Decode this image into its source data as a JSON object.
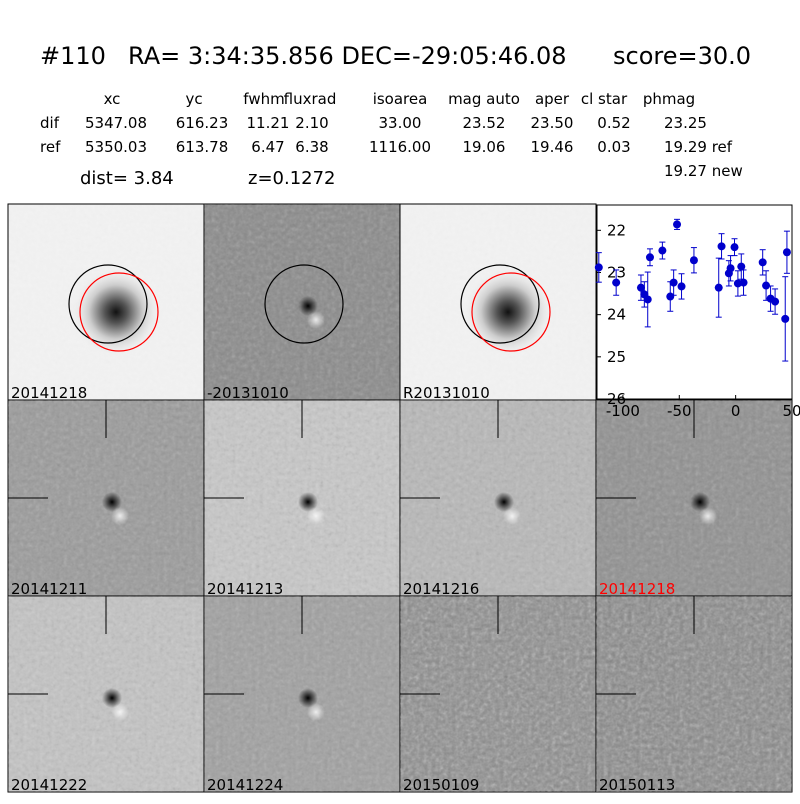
{
  "header": {
    "id": "#110",
    "coords": "RA= 3:34:35.856 DEC=-29:05:46.08",
    "score": "score=30.0",
    "columns": [
      "xc",
      "yc",
      "fwhm",
      "fluxrad",
      "isoarea",
      "mag auto",
      "aper",
      "cl star",
      "phmag"
    ],
    "rows": [
      [
        "dif",
        "5347.08",
        "616.23",
        "11.21",
        "2.10",
        "33.00",
        "23.52",
        "23.50",
        "0.52",
        "23.25"
      ],
      [
        "ref",
        "5350.03",
        "613.78",
        "6.47",
        "6.38",
        "1116.00",
        "19.06",
        "19.46",
        "0.03",
        "19.29 ref"
      ]
    ],
    "extra": "19.27 new",
    "dist": "dist=  3.84",
    "z": "z=0.1272"
  },
  "stamps": [
    "20141218",
    "-20131010",
    "R20131010",
    "20141211",
    "20141213",
    "20141216",
    "20141218",
    "20141222",
    "20141224",
    "20150109",
    "20150113"
  ],
  "chart_data": {
    "type": "scatter",
    "color": "#0000cc",
    "x": [
      -121.4,
      -106,
      -84,
      -81,
      -78,
      -76,
      -65,
      -58,
      -55,
      -52,
      -48,
      -37,
      -15,
      -12.5,
      -6,
      -4.5,
      -1,
      2,
      5,
      7,
      24,
      27,
      31,
      35,
      44,
      45.5
    ],
    "values": [
      22.88,
      23.24,
      23.36,
      23.52,
      23.64,
      22.64,
      22.48,
      23.57,
      23.24,
      21.86,
      23.33,
      22.71,
      23.36,
      22.38,
      23.02,
      22.9,
      22.4,
      23.26,
      22.86,
      23.24,
      22.76,
      23.31,
      23.62,
      23.69,
      24.1,
      22.52
    ],
    "errors": [
      0.35,
      0.3,
      0.3,
      0.3,
      0.65,
      0.2,
      0.2,
      0.35,
      0.3,
      0.12,
      0.3,
      0.3,
      0.7,
      0.3,
      0.3,
      0.3,
      0.2,
      0.3,
      0.3,
      0.3,
      0.3,
      0.35,
      0.3,
      0.3,
      1.0,
      0.5
    ],
    "xlim": [
      -123,
      50
    ],
    "ylim": [
      21.4,
      26
    ],
    "invert_y": true,
    "xticks": [
      -100,
      -50,
      0,
      50
    ],
    "yticks": [
      22,
      23,
      24,
      25,
      26
    ]
  }
}
